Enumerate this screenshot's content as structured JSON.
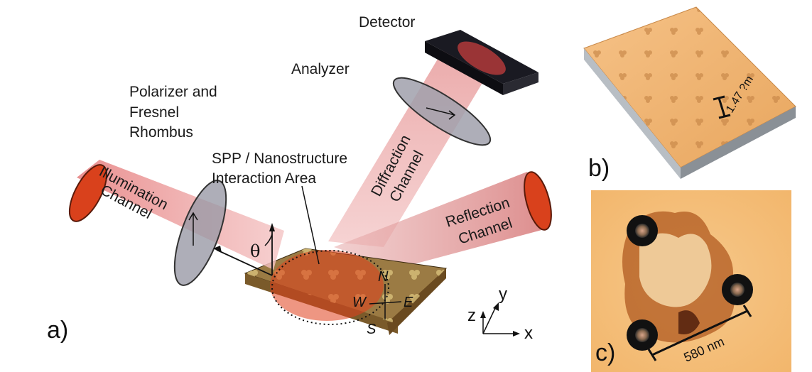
{
  "labels": {
    "detector": "Detector",
    "analyzer": "Analyzer",
    "polarizer_line1": "Polarizer and",
    "polarizer_line2": "Fresnel",
    "polarizer_line3": "Rhombus",
    "spp_line1": "SPP / Nanostructure",
    "spp_line2": "Interaction Area",
    "illumination_line1": "Illumination",
    "illumination_line2": "Channel",
    "diffraction_line1": "Diffraction",
    "diffraction_line2": "Channel",
    "reflection_line1": "Reflection",
    "reflection_line2": "Channel",
    "theta": "θ",
    "compass_n": "N",
    "compass_e": "E",
    "compass_s": "S",
    "compass_w": "W",
    "axis_x": "x",
    "axis_y": "y",
    "axis_z": "z"
  },
  "panels": {
    "a": "a)",
    "b": "b)",
    "c": "c)"
  },
  "scale_bars": {
    "b_label": "1.47 ?m",
    "c_label": "580 nm"
  },
  "colors": {
    "beam": "#d9696b",
    "beam_end": "#d9411c",
    "substrate": "#8a6a3a",
    "afm_surface": "#f0b070",
    "dot_ring": "#1a1a1a"
  }
}
